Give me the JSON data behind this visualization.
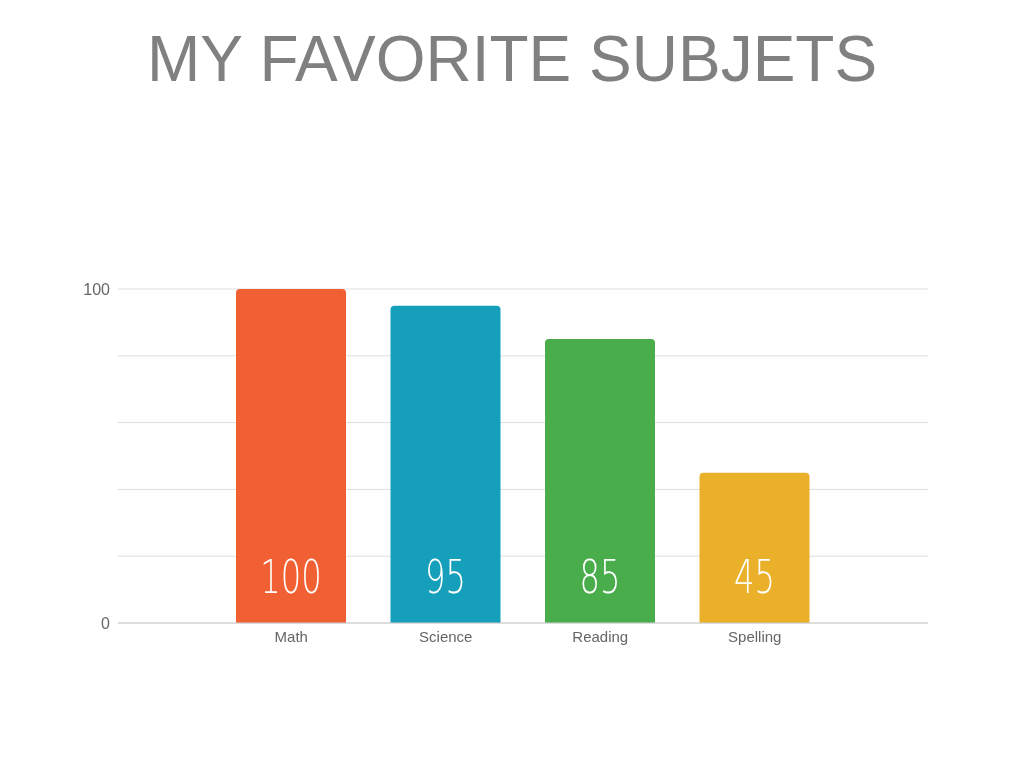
{
  "chart_data": {
    "type": "bar",
    "title": "MY FAVORITE SUBJETS",
    "categories": [
      "Math",
      "Science",
      "Reading",
      "Spelling"
    ],
    "values": [
      100,
      95,
      85,
      45
    ],
    "colors": [
      "#f06033",
      "#169fbb",
      "#48ad4a",
      "#ebb02a"
    ],
    "ylim": [
      0,
      100
    ],
    "yticks": [
      0,
      {
        "value": 20,
        "label": null
      },
      {
        "value": 40,
        "label": null
      },
      {
        "value": 60,
        "label": null
      },
      {
        "value": 80,
        "label": null
      },
      100
    ],
    "grid": "y",
    "data_labels": true
  }
}
